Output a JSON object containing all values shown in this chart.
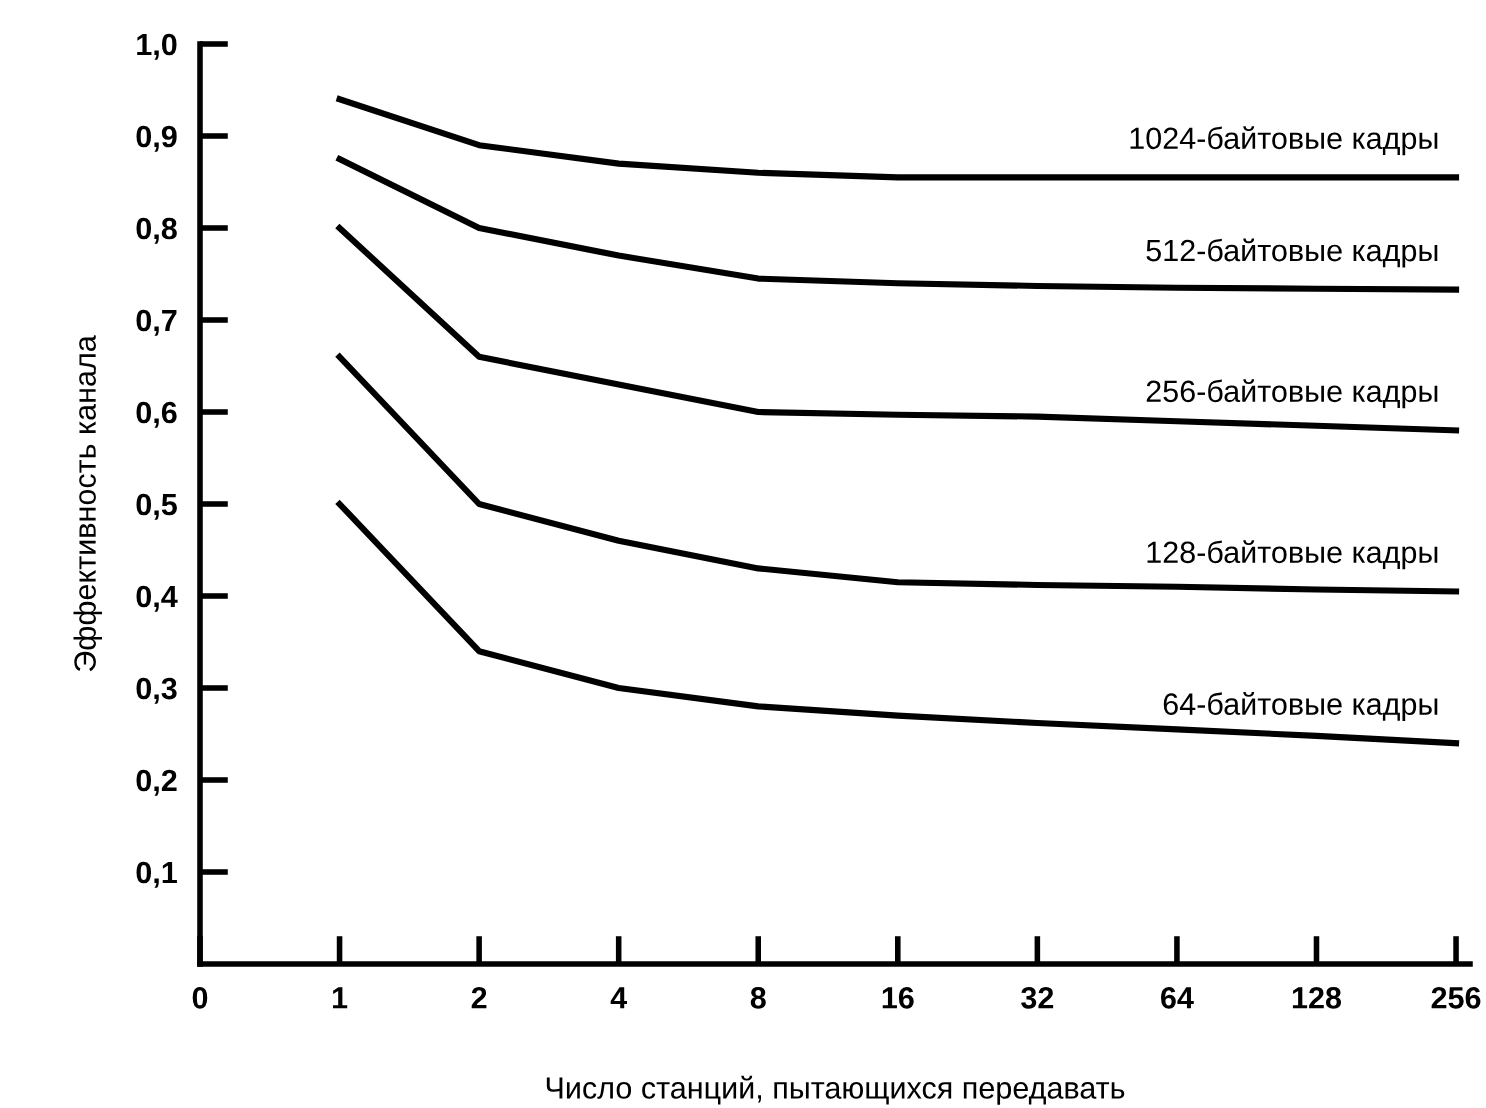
{
  "chart_data": {
    "type": "line",
    "xlabel": "Число станций, пытающихся передавать",
    "ylabel": "Эффективность канала",
    "categories": [
      "0",
      "1",
      "2",
      "4",
      "8",
      "16",
      "32",
      "64",
      "128",
      "256"
    ],
    "ylim": [
      0,
      1.0
    ],
    "yticks": [
      {
        "value": 0.1,
        "label": "0,1"
      },
      {
        "value": 0.2,
        "label": "0,2"
      },
      {
        "value": 0.3,
        "label": "0,3"
      },
      {
        "value": 0.4,
        "label": "0,4"
      },
      {
        "value": 0.5,
        "label": "0,5"
      },
      {
        "value": 0.6,
        "label": "0,6"
      },
      {
        "value": 0.7,
        "label": "0,7"
      },
      {
        "value": 0.8,
        "label": "0,8"
      },
      {
        "value": 0.9,
        "label": "0,9"
      },
      {
        "value": 1.0,
        "label": "1,0"
      }
    ],
    "grid": false,
    "legend": false,
    "marker": "none",
    "line_style": "solid",
    "series": [
      {
        "name": "1024-байтовые кадры",
        "color": "#000000",
        "values": [
          null,
          0.94,
          0.89,
          0.87,
          0.86,
          0.855,
          0.855,
          0.855,
          0.855,
          0.855
        ]
      },
      {
        "name": "512-байтовые кадры",
        "color": "#000000",
        "values": [
          null,
          0.875,
          0.8,
          0.77,
          0.745,
          0.74,
          0.737,
          0.735,
          0.734,
          0.733
        ]
      },
      {
        "name": "256-байтовые кадры",
        "color": "#000000",
        "values": [
          null,
          0.8,
          0.66,
          0.63,
          0.6,
          0.597,
          0.595,
          0.59,
          0.585,
          0.58
        ]
      },
      {
        "name": "128-байтовые кадры",
        "color": "#000000",
        "values": [
          null,
          0.66,
          0.5,
          0.46,
          0.43,
          0.415,
          0.412,
          0.41,
          0.407,
          0.405
        ]
      },
      {
        "name": "64-байтовые кадры",
        "color": "#000000",
        "values": [
          null,
          0.5,
          0.34,
          0.3,
          0.28,
          0.27,
          0.262,
          0.255,
          0.248,
          0.24
        ]
      }
    ]
  }
}
